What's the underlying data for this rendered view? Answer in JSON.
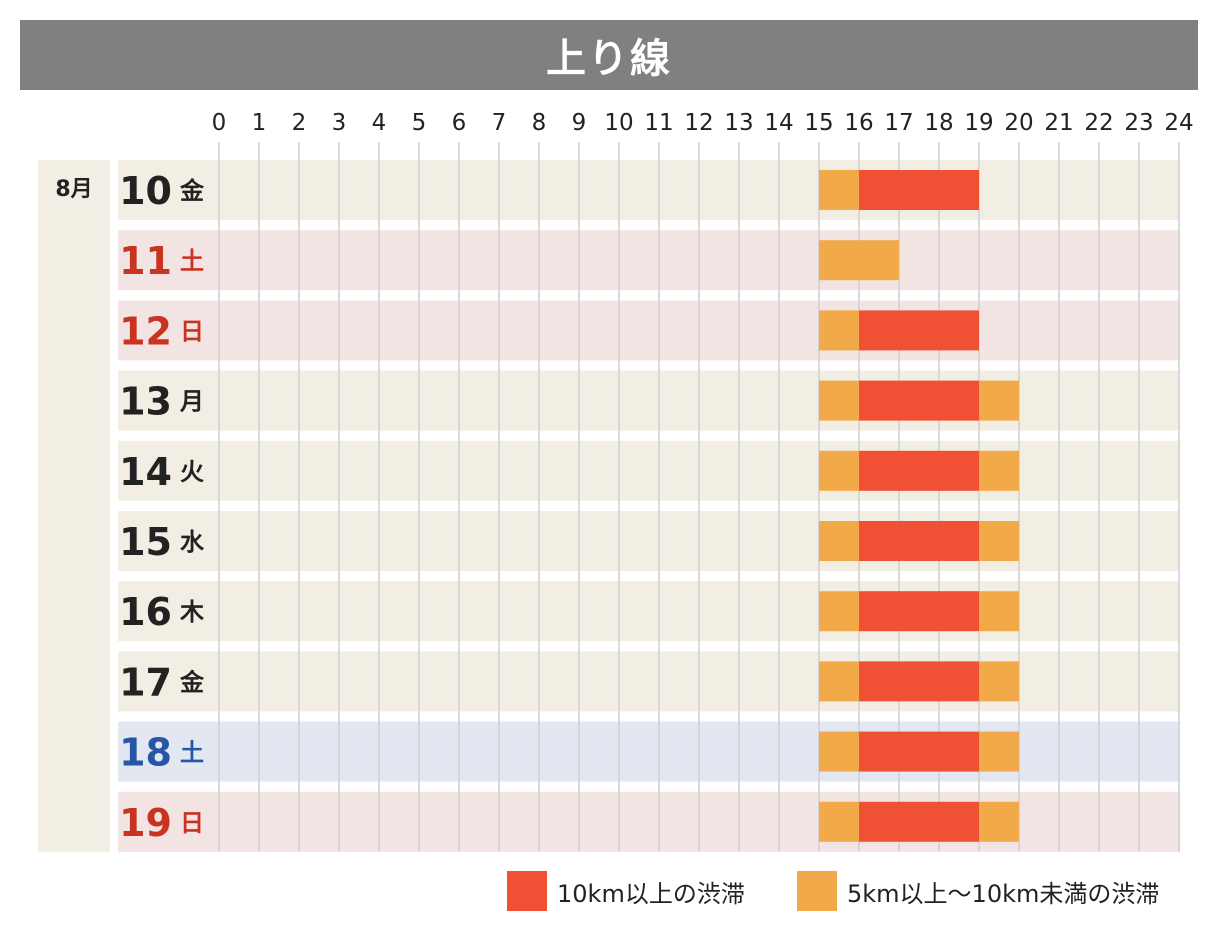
{
  "title": "上り線",
  "colors": {
    "title_bg": "#808080",
    "weekday_bg": "#f2eee3",
    "saturday_11_bg": "#f2e4e2",
    "holiday_bg": "#f2e4e2",
    "saturday_bg": "#e2e7f2",
    "month_bg": "#f2eee3",
    "heavy": "#f05134",
    "moderate": "#f2a94a",
    "text_black": "#222222",
    "text_red": "#c8341f",
    "text_blue": "#2756a6",
    "grid": "#cfcfcf"
  },
  "legend": [
    {
      "label": "10km以上の渋滞",
      "color": "#f05134"
    },
    {
      "label": "5km以上～10km未満の渋滞",
      "color": "#f2a94a"
    }
  ],
  "chart_data": {
    "type": "gantt",
    "title": "上り線",
    "x_ticks": [
      "0",
      "1",
      "2",
      "3",
      "4",
      "5",
      "6",
      "7",
      "8",
      "9",
      "10",
      "11",
      "12",
      "13",
      "14",
      "15",
      "16",
      "17",
      "18",
      "19",
      "20",
      "21",
      "22",
      "23",
      "24"
    ],
    "x_range": [
      0,
      24
    ],
    "month": "8月",
    "rows": [
      {
        "day": "10",
        "weekday": "金",
        "type": "weekday",
        "segments": [
          {
            "start": 15,
            "end": 16,
            "level": "moderate"
          },
          {
            "start": 16,
            "end": 19,
            "level": "heavy"
          }
        ]
      },
      {
        "day": "11",
        "weekday": "土",
        "type": "holiday",
        "segments": [
          {
            "start": 15,
            "end": 17,
            "level": "moderate"
          }
        ]
      },
      {
        "day": "12",
        "weekday": "日",
        "type": "holiday",
        "segments": [
          {
            "start": 15,
            "end": 16,
            "level": "moderate"
          },
          {
            "start": 16,
            "end": 19,
            "level": "heavy"
          }
        ]
      },
      {
        "day": "13",
        "weekday": "月",
        "type": "weekday",
        "segments": [
          {
            "start": 15,
            "end": 16,
            "level": "moderate"
          },
          {
            "start": 16,
            "end": 19,
            "level": "heavy"
          },
          {
            "start": 19,
            "end": 20,
            "level": "moderate"
          }
        ]
      },
      {
        "day": "14",
        "weekday": "火",
        "type": "weekday",
        "segments": [
          {
            "start": 15,
            "end": 16,
            "level": "moderate"
          },
          {
            "start": 16,
            "end": 19,
            "level": "heavy"
          },
          {
            "start": 19,
            "end": 20,
            "level": "moderate"
          }
        ]
      },
      {
        "day": "15",
        "weekday": "水",
        "type": "weekday",
        "segments": [
          {
            "start": 15,
            "end": 16,
            "level": "moderate"
          },
          {
            "start": 16,
            "end": 19,
            "level": "heavy"
          },
          {
            "start": 19,
            "end": 20,
            "level": "moderate"
          }
        ]
      },
      {
        "day": "16",
        "weekday": "木",
        "type": "weekday",
        "segments": [
          {
            "start": 15,
            "end": 16,
            "level": "moderate"
          },
          {
            "start": 16,
            "end": 19,
            "level": "heavy"
          },
          {
            "start": 19,
            "end": 20,
            "level": "moderate"
          }
        ]
      },
      {
        "day": "17",
        "weekday": "金",
        "type": "weekday",
        "segments": [
          {
            "start": 15,
            "end": 16,
            "level": "moderate"
          },
          {
            "start": 16,
            "end": 19,
            "level": "heavy"
          },
          {
            "start": 19,
            "end": 20,
            "level": "moderate"
          }
        ]
      },
      {
        "day": "18",
        "weekday": "土",
        "type": "saturday",
        "segments": [
          {
            "start": 15,
            "end": 16,
            "level": "moderate"
          },
          {
            "start": 16,
            "end": 19,
            "level": "heavy"
          },
          {
            "start": 19,
            "end": 20,
            "level": "moderate"
          }
        ]
      },
      {
        "day": "19",
        "weekday": "日",
        "type": "holiday",
        "segments": [
          {
            "start": 15,
            "end": 16,
            "level": "moderate"
          },
          {
            "start": 16,
            "end": 19,
            "level": "heavy"
          },
          {
            "start": 19,
            "end": 20,
            "level": "moderate"
          }
        ]
      }
    ]
  }
}
